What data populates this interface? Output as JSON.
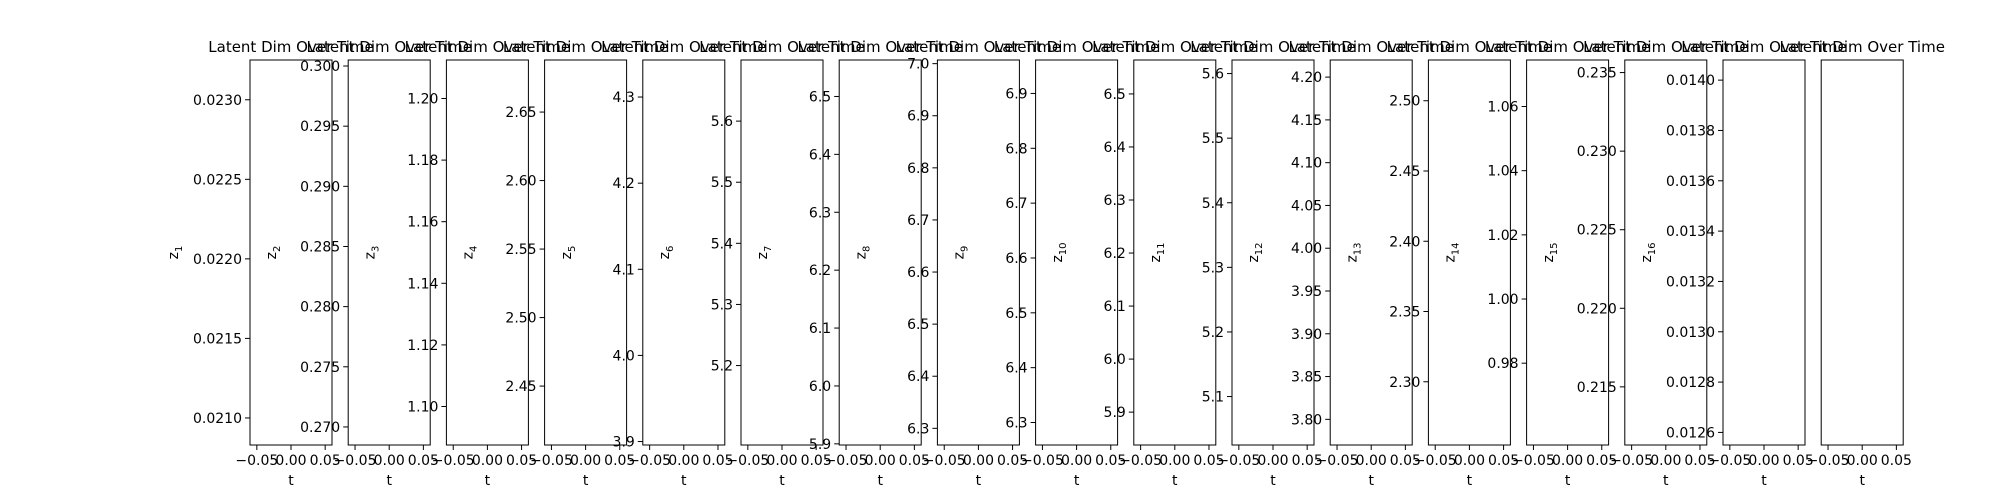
{
  "chart_data": {
    "type": "line",
    "grid": false,
    "xlabel": "t",
    "x_ticks": [
      "−0.05",
      "0.00",
      "0.05"
    ],
    "x_tick_values": [
      -0.05,
      0.0,
      0.05
    ],
    "xlim": [
      -0.06,
      0.06
    ],
    "panels": [
      {
        "title": "Latent Dim Over Time",
        "ylabel_base": "z",
        "ylabel_sub": "1",
        "ylim": [
          0.02083,
          0.02325
        ],
        "yticks": [
          {
            "v": 0.021,
            "l": "0.0210"
          },
          {
            "v": 0.0215,
            "l": "0.0215"
          },
          {
            "v": 0.022,
            "l": "0.0220"
          },
          {
            "v": 0.0225,
            "l": "0.0225"
          },
          {
            "v": 0.023,
            "l": "0.0230"
          }
        ]
      },
      {
        "title": "Latent Dim Over Time",
        "ylabel_base": "z",
        "ylabel_sub": "2",
        "ylim": [
          0.2685,
          0.3005
        ],
        "yticks": [
          {
            "v": 0.27,
            "l": "0.270"
          },
          {
            "v": 0.275,
            "l": "0.275"
          },
          {
            "v": 0.28,
            "l": "0.280"
          },
          {
            "v": 0.285,
            "l": "0.285"
          },
          {
            "v": 0.29,
            "l": "0.290"
          },
          {
            "v": 0.295,
            "l": "0.295"
          },
          {
            "v": 0.3,
            "l": "0.300"
          }
        ]
      },
      {
        "title": "Latent Dim Over Time",
        "ylabel_base": "z",
        "ylabel_sub": "3",
        "ylim": [
          1.0875,
          1.2125
        ],
        "yticks": [
          {
            "v": 1.1,
            "l": "1.10"
          },
          {
            "v": 1.12,
            "l": "1.12"
          },
          {
            "v": 1.14,
            "l": "1.14"
          },
          {
            "v": 1.16,
            "l": "1.16"
          },
          {
            "v": 1.18,
            "l": "1.18"
          },
          {
            "v": 1.2,
            "l": "1.20"
          }
        ]
      },
      {
        "title": "Latent Dim Over Time",
        "ylabel_base": "z",
        "ylabel_sub": "4",
        "ylim": [
          2.407,
          2.688
        ],
        "yticks": [
          {
            "v": 2.45,
            "l": "2.45"
          },
          {
            "v": 2.5,
            "l": "2.50"
          },
          {
            "v": 2.55,
            "l": "2.55"
          },
          {
            "v": 2.6,
            "l": "2.60"
          },
          {
            "v": 2.65,
            "l": "2.65"
          }
        ]
      },
      {
        "title": "Latent Dim Over Time",
        "ylabel_base": "z",
        "ylabel_sub": "5",
        "ylim": [
          3.896,
          4.343
        ],
        "yticks": [
          {
            "v": 3.9,
            "l": "3.9"
          },
          {
            "v": 4.0,
            "l": "4.0"
          },
          {
            "v": 4.1,
            "l": "4.1"
          },
          {
            "v": 4.2,
            "l": "4.2"
          },
          {
            "v": 4.3,
            "l": "4.3"
          }
        ]
      },
      {
        "title": "Latent Dim Over Time",
        "ylabel_base": "z",
        "ylabel_sub": "6",
        "ylim": [
          5.07,
          5.7
        ],
        "yticks": [
          {
            "v": 5.2,
            "l": "5.2"
          },
          {
            "v": 5.3,
            "l": "5.3"
          },
          {
            "v": 5.4,
            "l": "5.4"
          },
          {
            "v": 5.5,
            "l": "5.5"
          },
          {
            "v": 5.6,
            "l": "5.6"
          }
        ]
      },
      {
        "title": "Latent Dim Over Time",
        "ylabel_base": "z",
        "ylabel_sub": "7",
        "ylim": [
          5.898,
          6.563
        ],
        "yticks": [
          {
            "v": 5.9,
            "l": "5.9"
          },
          {
            "v": 6.0,
            "l": "6.0"
          },
          {
            "v": 6.1,
            "l": "6.1"
          },
          {
            "v": 6.2,
            "l": "6.2"
          },
          {
            "v": 6.3,
            "l": "6.3"
          },
          {
            "v": 6.4,
            "l": "6.4"
          },
          {
            "v": 6.5,
            "l": "6.5"
          }
        ]
      },
      {
        "title": "Latent Dim Over Time",
        "ylabel_base": "z",
        "ylabel_sub": "8",
        "ylim": [
          6.268,
          7.007
        ],
        "yticks": [
          {
            "v": 6.3,
            "l": "6.3"
          },
          {
            "v": 6.4,
            "l": "6.4"
          },
          {
            "v": 6.5,
            "l": "6.5"
          },
          {
            "v": 6.6,
            "l": "6.6"
          },
          {
            "v": 6.7,
            "l": "6.7"
          },
          {
            "v": 6.8,
            "l": "6.8"
          },
          {
            "v": 6.9,
            "l": "6.9"
          },
          {
            "v": 7.0,
            "l": "7.0"
          }
        ]
      },
      {
        "title": "Latent Dim Over Time",
        "ylabel_base": "z",
        "ylabel_sub": "9",
        "ylim": [
          6.259,
          6.961
        ],
        "yticks": [
          {
            "v": 6.3,
            "l": "6.3"
          },
          {
            "v": 6.4,
            "l": "6.4"
          },
          {
            "v": 6.5,
            "l": "6.5"
          },
          {
            "v": 6.6,
            "l": "6.6"
          },
          {
            "v": 6.7,
            "l": "6.7"
          },
          {
            "v": 6.8,
            "l": "6.8"
          },
          {
            "v": 6.9,
            "l": "6.9"
          }
        ]
      },
      {
        "title": "Latent Dim Over Time",
        "ylabel_base": "z",
        "ylabel_sub": "10",
        "ylim": [
          5.838,
          6.564
        ],
        "yticks": [
          {
            "v": 5.9,
            "l": "5.9"
          },
          {
            "v": 6.0,
            "l": "6.0"
          },
          {
            "v": 6.1,
            "l": "6.1"
          },
          {
            "v": 6.2,
            "l": "6.2"
          },
          {
            "v": 6.3,
            "l": "6.3"
          },
          {
            "v": 6.4,
            "l": "6.4"
          },
          {
            "v": 6.5,
            "l": "6.5"
          }
        ]
      },
      {
        "title": "Latent Dim Over Time",
        "ylabel_base": "z",
        "ylabel_sub": "11",
        "ylim": [
          5.025,
          5.621
        ],
        "yticks": [
          {
            "v": 5.1,
            "l": "5.1"
          },
          {
            "v": 5.2,
            "l": "5.2"
          },
          {
            "v": 5.3,
            "l": "5.3"
          },
          {
            "v": 5.4,
            "l": "5.4"
          },
          {
            "v": 5.5,
            "l": "5.5"
          },
          {
            "v": 5.6,
            "l": "5.6"
          }
        ]
      },
      {
        "title": "Latent Dim Over Time",
        "ylabel_base": "z",
        "ylabel_sub": "12",
        "ylim": [
          3.77,
          4.22
        ],
        "yticks": [
          {
            "v": 3.8,
            "l": "3.80"
          },
          {
            "v": 3.85,
            "l": "3.85"
          },
          {
            "v": 3.9,
            "l": "3.90"
          },
          {
            "v": 3.95,
            "l": "3.95"
          },
          {
            "v": 4.0,
            "l": "4.00"
          },
          {
            "v": 4.05,
            "l": "4.05"
          },
          {
            "v": 4.1,
            "l": "4.10"
          },
          {
            "v": 4.15,
            "l": "4.15"
          },
          {
            "v": 4.2,
            "l": "4.20"
          }
        ]
      },
      {
        "title": "Latent Dim Over Time",
        "ylabel_base": "z",
        "ylabel_sub": "13",
        "ylim": [
          2.255,
          2.529
        ],
        "yticks": [
          {
            "v": 2.3,
            "l": "2.30"
          },
          {
            "v": 2.35,
            "l": "2.35"
          },
          {
            "v": 2.4,
            "l": "2.40"
          },
          {
            "v": 2.45,
            "l": "2.45"
          },
          {
            "v": 2.5,
            "l": "2.50"
          }
        ]
      },
      {
        "title": "Latent Dim Over Time",
        "ylabel_base": "z",
        "ylabel_sub": "14",
        "ylim": [
          0.9545,
          1.0745
        ],
        "yticks": [
          {
            "v": 0.98,
            "l": "0.98"
          },
          {
            "v": 1.0,
            "l": "1.00"
          },
          {
            "v": 1.02,
            "l": "1.02"
          },
          {
            "v": 1.04,
            "l": "1.04"
          },
          {
            "v": 1.06,
            "l": "1.06"
          }
        ]
      },
      {
        "title": "Latent Dim Over Time",
        "ylabel_base": "z",
        "ylabel_sub": "15",
        "ylim": [
          0.2113,
          0.2358
        ],
        "yticks": [
          {
            "v": 0.215,
            "l": "0.215"
          },
          {
            "v": 0.22,
            "l": "0.220"
          },
          {
            "v": 0.225,
            "l": "0.225"
          },
          {
            "v": 0.23,
            "l": "0.230"
          },
          {
            "v": 0.235,
            "l": "0.235"
          }
        ]
      },
      {
        "title": "Latent Dim Over Time",
        "ylabel_base": "z",
        "ylabel_sub": "16",
        "ylim": [
          0.01255,
          0.01408
        ],
        "yticks": [
          {
            "v": 0.0126,
            "l": "0.0126"
          },
          {
            "v": 0.0128,
            "l": "0.0128"
          },
          {
            "v": 0.013,
            "l": "0.0130"
          },
          {
            "v": 0.0132,
            "l": "0.0132"
          },
          {
            "v": 0.0134,
            "l": "0.0134"
          },
          {
            "v": 0.0136,
            "l": "0.0136"
          },
          {
            "v": 0.0138,
            "l": "0.0138"
          },
          {
            "v": 0.014,
            "l": "0.0140"
          }
        ]
      },
      {
        "title": "Latent Dim Over Time",
        "ylabel_base": "",
        "ylabel_sub": "",
        "ylim": null,
        "yticks": []
      }
    ]
  }
}
